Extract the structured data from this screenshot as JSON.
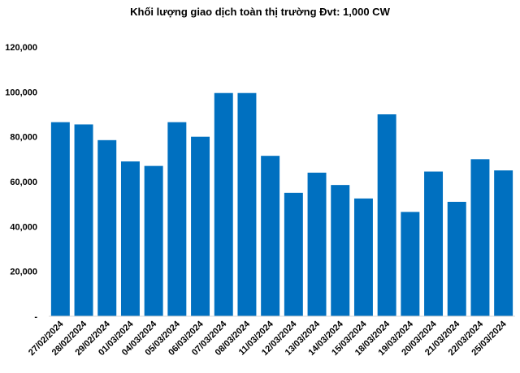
{
  "chart_data": {
    "type": "bar",
    "title": "Khối lượng giao dịch toàn thị trường Đvt: 1,000 CW",
    "xlabel": "",
    "ylabel": "",
    "categories": [
      "27/02/2024",
      "28/02/2024",
      "29/02/2024",
      "01/03/2024",
      "04/03/2024",
      "05/03/2024",
      "06/03/2024",
      "07/03/2024",
      "08/03/2024",
      "11/03/2024",
      "12/03/2024",
      "13/03/2024",
      "14/03/2024",
      "15/03/2024",
      "18/03/2024",
      "19/03/2024",
      "20/03/2024",
      "21/03/2024",
      "22/03/2024",
      "25/03/2024"
    ],
    "values": [
      86500,
      85500,
      78500,
      69000,
      67000,
      86500,
      80000,
      99500,
      99500,
      71500,
      55000,
      64000,
      58500,
      52500,
      90000,
      46500,
      64500,
      51000,
      70000,
      65000
    ],
    "ylim": [
      0,
      120000
    ],
    "yticks": [
      0,
      20000,
      40000,
      60000,
      80000,
      100000,
      120000
    ],
    "ytick_labels": [
      "-",
      "20,000",
      "40,000",
      "60,000",
      "80,000",
      "100,000",
      "120,000"
    ],
    "grid": false,
    "legend": "none",
    "bar_color": "#0070C0"
  }
}
